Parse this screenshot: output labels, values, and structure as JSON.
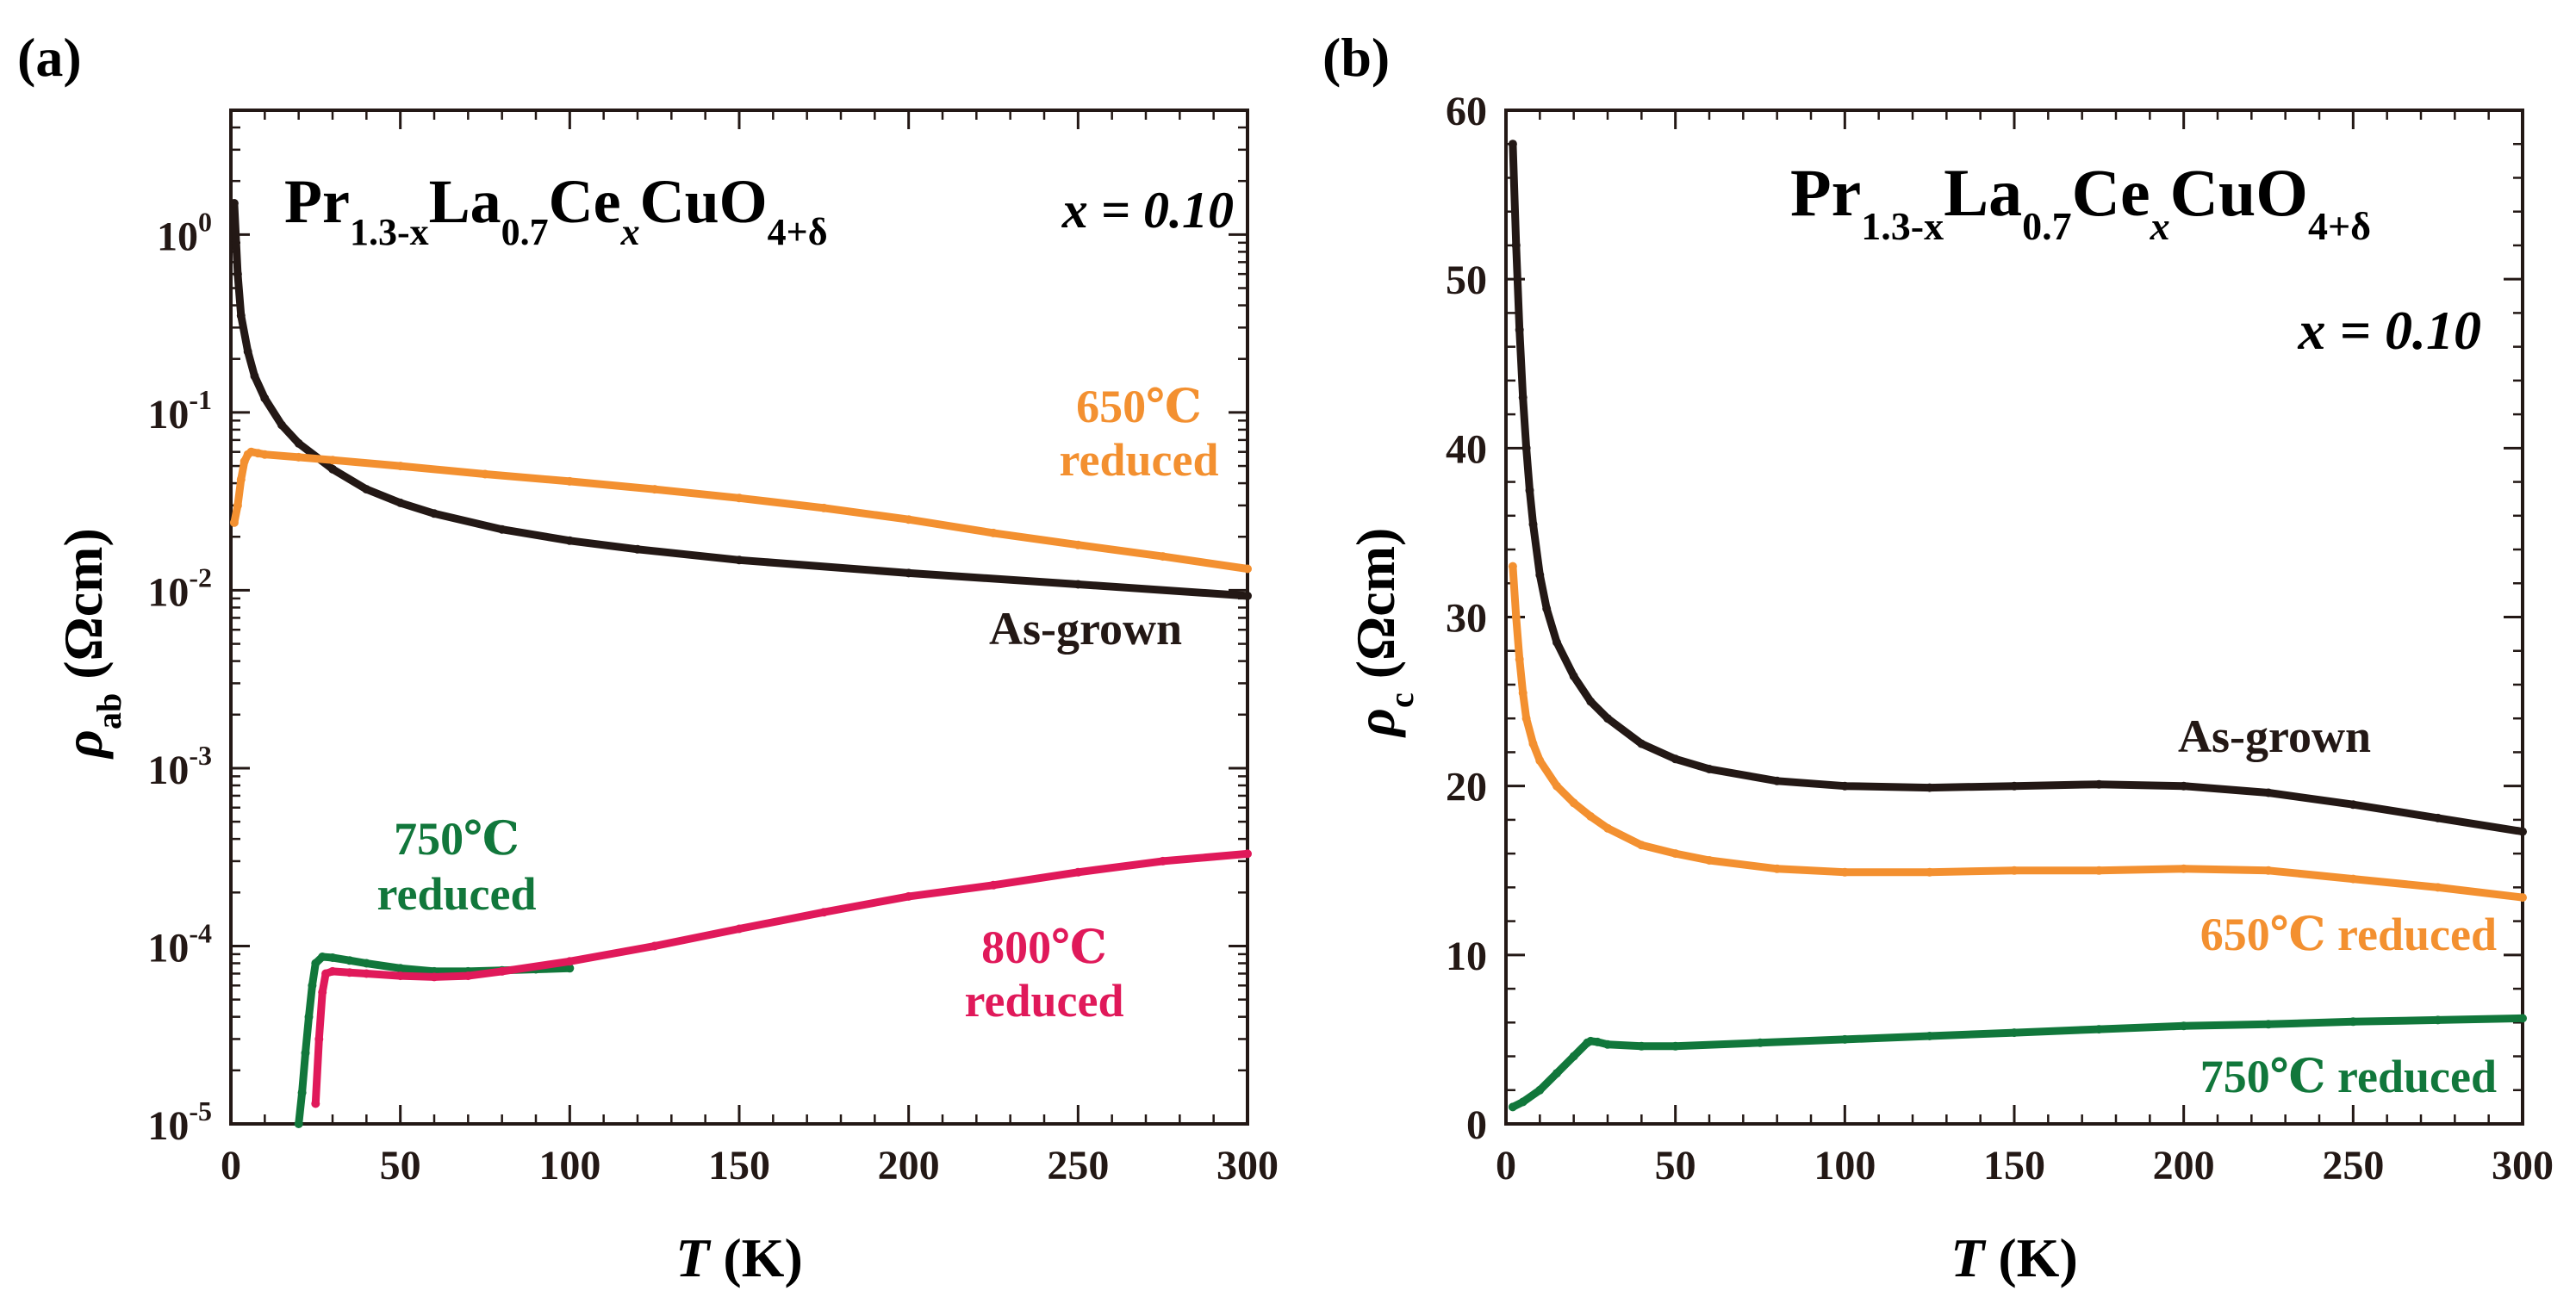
{
  "chart_data": [
    {
      "panel": "(a)",
      "type": "line",
      "y_scale": "log",
      "xlabel": "T (K)",
      "xlabel_var": "T",
      "xlabel_unit": " (K)",
      "ylabel": "ρab (Ωcm)",
      "ylabel_sym": "ρ",
      "ylabel_sub": "ab",
      "ylabel_unit": " (Ωcm)",
      "xlim": [
        0,
        300
      ],
      "ylim": [
        1e-05,
        5
      ],
      "x_ticks": [
        0,
        50,
        100,
        150,
        200,
        250,
        300
      ],
      "y_ticks": [
        {
          "value": 1,
          "base": "10",
          "exp": "0"
        },
        {
          "value": 0.1,
          "base": "10",
          "exp": "-1"
        },
        {
          "value": 0.01,
          "base": "10",
          "exp": "-2"
        },
        {
          "value": 0.001,
          "base": "10",
          "exp": "-3"
        },
        {
          "value": 0.0001,
          "base": "10",
          "exp": "-4"
        },
        {
          "value": 1e-05,
          "base": "10",
          "exp": "-5"
        }
      ],
      "formula": {
        "p1": "Pr",
        "s1": "1.3-x",
        "p2": "La",
        "s2": "0.7",
        "p3": "Ce",
        "s3": "x",
        "p4": "CuO",
        "s4": "4+δ"
      },
      "doping_label": "x = 0.10",
      "series": [
        {
          "name": "As-grown",
          "label_lines": [
            "As-grown"
          ],
          "color": "#231815",
          "x": [
            1,
            2,
            3,
            5,
            7,
            10,
            15,
            20,
            30,
            40,
            50,
            60,
            80,
            100,
            120,
            150,
            200,
            250,
            300
          ],
          "y": [
            1.5,
            0.6,
            0.35,
            0.22,
            0.16,
            0.12,
            0.085,
            0.067,
            0.048,
            0.037,
            0.031,
            0.027,
            0.022,
            0.019,
            0.017,
            0.0148,
            0.0125,
            0.0108,
            0.0093
          ]
        },
        {
          "name": "650℃ reduced",
          "label_lines": [
            "650℃",
            "reduced"
          ],
          "color": "#f39030",
          "x": [
            1,
            2,
            3,
            4,
            5,
            6,
            8,
            10,
            20,
            30,
            50,
            75,
            100,
            125,
            150,
            175,
            200,
            225,
            250,
            275,
            300
          ],
          "y": [
            0.024,
            0.03,
            0.042,
            0.053,
            0.058,
            0.06,
            0.059,
            0.058,
            0.056,
            0.054,
            0.05,
            0.045,
            0.041,
            0.037,
            0.033,
            0.029,
            0.025,
            0.021,
            0.018,
            0.0155,
            0.0132
          ]
        },
        {
          "name": "750℃ reduced",
          "label_lines": [
            "750℃",
            "reduced"
          ],
          "color": "#11773b",
          "x": [
            20,
            21,
            22,
            23,
            24,
            25,
            27,
            30,
            35,
            40,
            50,
            60,
            70,
            80,
            90,
            100
          ],
          "y": [
            1e-05,
            1.5e-05,
            2.5e-05,
            4e-05,
            6e-05,
            8e-05,
            8.7e-05,
            8.6e-05,
            8.3e-05,
            8e-05,
            7.5e-05,
            7.2e-05,
            7.2e-05,
            7.3e-05,
            7.4e-05,
            7.5e-05
          ]
        },
        {
          "name": "800℃ reduced",
          "label_lines": [
            "800℃",
            "reduced"
          ],
          "color": "#e0195a",
          "x": [
            25,
            26,
            27,
            28,
            30,
            35,
            40,
            50,
            60,
            70,
            80,
            100,
            125,
            150,
            175,
            200,
            225,
            250,
            275,
            300
          ],
          "y": [
            1.3e-05,
            3e-05,
            5.5e-05,
            7e-05,
            7.2e-05,
            7.1e-05,
            7e-05,
            6.8e-05,
            6.7e-05,
            6.8e-05,
            7.2e-05,
            8.2e-05,
            0.0001,
            0.000125,
            0.000155,
            0.00019,
            0.00022,
            0.00026,
            0.0003,
            0.00033
          ]
        }
      ]
    },
    {
      "panel": "(b)",
      "type": "line",
      "y_scale": "linear",
      "xlabel": "T (K)",
      "xlabel_var": "T",
      "xlabel_unit": " (K)",
      "ylabel": "ρc (Ωcm)",
      "ylabel_sym": "ρ",
      "ylabel_sub": "c",
      "ylabel_unit": " (Ωcm)",
      "xlim": [
        0,
        300
      ],
      "ylim": [
        0,
        60
      ],
      "x_ticks": [
        0,
        50,
        100,
        150,
        200,
        250,
        300
      ],
      "y_ticks": [
        0,
        10,
        20,
        30,
        40,
        50,
        60
      ],
      "formula": {
        "p1": "Pr",
        "s1": "1.3-x",
        "p2": "La",
        "s2": "0.7",
        "p3": "Ce",
        "s3": "x",
        "p4": "CuO",
        "s4": "4+δ"
      },
      "doping_label": "x = 0.10",
      "series": [
        {
          "name": "As-grown",
          "label_lines": [
            "As-grown"
          ],
          "color": "#231815",
          "x": [
            2,
            3,
            4,
            5,
            6,
            7,
            8,
            10,
            12,
            15,
            20,
            25,
            30,
            40,
            50,
            60,
            80,
            100,
            125,
            150,
            175,
            200,
            225,
            250,
            275,
            300
          ],
          "y": [
            58,
            52,
            47,
            43,
            40,
            37.5,
            35.5,
            32.5,
            30.5,
            28.5,
            26.5,
            25,
            24,
            22.5,
            21.6,
            21,
            20.3,
            20,
            19.9,
            20,
            20.1,
            20,
            19.6,
            18.9,
            18.1,
            17.3
          ]
        },
        {
          "name": "650℃ reduced",
          "label_lines": [
            "650℃ reduced"
          ],
          "color": "#f39030",
          "x": [
            2,
            3,
            4,
            5,
            6,
            8,
            10,
            15,
            20,
            25,
            30,
            40,
            50,
            60,
            80,
            100,
            125,
            150,
            175,
            200,
            225,
            250,
            275,
            300
          ],
          "y": [
            33,
            30,
            27.5,
            25.5,
            24,
            22.5,
            21.5,
            20,
            19,
            18.2,
            17.5,
            16.5,
            16,
            15.6,
            15.1,
            14.9,
            14.9,
            15,
            15,
            15.1,
            15,
            14.5,
            14,
            13.4
          ]
        },
        {
          "name": "750℃ reduced",
          "label_lines": [
            "750℃ reduced"
          ],
          "color": "#11773b",
          "x": [
            2,
            5,
            10,
            15,
            20,
            24,
            25,
            27,
            30,
            40,
            50,
            75,
            100,
            125,
            150,
            175,
            200,
            225,
            250,
            275,
            300
          ],
          "y": [
            1,
            1.3,
            2,
            3,
            4,
            4.8,
            4.9,
            4.85,
            4.7,
            4.6,
            4.6,
            4.8,
            5,
            5.2,
            5.4,
            5.6,
            5.8,
            5.9,
            6.05,
            6.15,
            6.25
          ]
        }
      ]
    }
  ]
}
